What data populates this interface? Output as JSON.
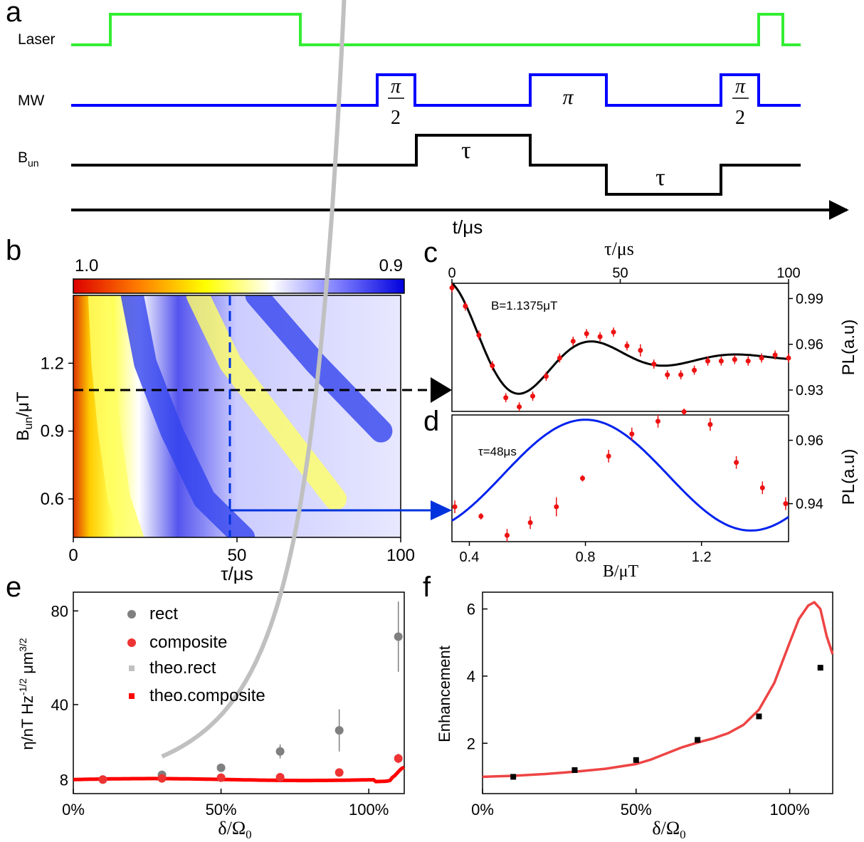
{
  "panels": {
    "a": {
      "label": "a",
      "rows": [
        {
          "name": "Laser",
          "sub": "",
          "color": "#33ee33"
        },
        {
          "name": "MW",
          "sub": "",
          "color": "#0000ff"
        },
        {
          "name": "B",
          "sub": "un",
          "color": "#000000"
        }
      ],
      "pulse_labels": {
        "pi_half_num": "π",
        "pi_half_den": "2",
        "pi": "π",
        "tau": "τ"
      },
      "time_axis_label": "t/μs"
    },
    "b": {
      "label": "b"
    },
    "c": {
      "label": "c"
    },
    "d": {
      "label": "d"
    },
    "e": {
      "label": "e"
    },
    "f": {
      "label": "f"
    }
  },
  "chart_data": [
    {
      "id": "b",
      "type": "heatmap",
      "xlabel": "τ/μs",
      "ylabel": "B",
      "ylabel_sub": "un",
      "ylabel_suffix": "/μT",
      "xlim": [
        0,
        100
      ],
      "ylim": [
        0.43,
        1.5
      ],
      "xticks": [
        0,
        50,
        100
      ],
      "yticks": [
        0.6,
        0.9,
        1.2
      ],
      "colorbar": {
        "min_label": "1.0",
        "max_label": "0.9",
        "colors": [
          "#dd0000",
          "#ff7f00",
          "#ffff00",
          "#ffffff",
          "#7f7fff",
          "#0000dd"
        ]
      },
      "markers": {
        "tau_cut": 48,
        "B_cut": 1.09
      },
      "contour_fronts": [
        {
          "level": "bright",
          "points": [
            [
              8,
              1.5
            ],
            [
              9,
              1.2
            ],
            [
              11,
              0.9
            ],
            [
              14,
              0.6
            ],
            [
              18,
              0.43
            ]
          ]
        },
        {
          "level": "dark",
          "points": [
            [
              18,
              1.5
            ],
            [
              22,
              1.2
            ],
            [
              30,
              0.9
            ],
            [
              40,
              0.6
            ],
            [
              52,
              0.43
            ]
          ]
        },
        {
          "level": "bright",
          "points": [
            [
              38,
              1.5
            ],
            [
              48,
              1.2
            ],
            [
              64,
              0.9
            ],
            [
              80,
              0.6
            ]
          ]
        },
        {
          "level": "dark",
          "points": [
            [
              56,
              1.5
            ],
            [
              74,
              1.2
            ],
            [
              94,
              0.9
            ]
          ]
        }
      ]
    },
    {
      "id": "c",
      "type": "scatter",
      "annotation": "B=1.1375μT",
      "xlabel": "τ/μs",
      "ylabel": "PL(a.u)",
      "xlim": [
        0,
        100
      ],
      "ylim": [
        0.916,
        1.0
      ],
      "xticks": [
        0,
        50,
        100
      ],
      "yticks": [
        0.93,
        0.96,
        0.99
      ],
      "x": [
        0,
        4,
        8,
        12,
        16,
        20,
        24,
        28,
        32,
        36,
        40,
        44,
        48,
        52,
        56,
        60,
        64,
        68,
        72,
        76,
        80,
        84,
        88,
        92,
        96,
        100
      ],
      "y": [
        0.997,
        0.985,
        0.966,
        0.946,
        0.925,
        0.919,
        0.926,
        0.939,
        0.951,
        0.962,
        0.967,
        0.965,
        0.968,
        0.959,
        0.956,
        0.947,
        0.94,
        0.94,
        0.943,
        0.949,
        0.949,
        0.95,
        0.949,
        0.951,
        0.953,
        0.951
      ],
      "yerr": [
        0.003,
        0.003,
        0.003,
        0.003,
        0.003,
        0.003,
        0.003,
        0.003,
        0.003,
        0.003,
        0.003,
        0.003,
        0.003,
        0.003,
        0.004,
        0.003,
        0.003,
        0.003,
        0.003,
        0.003,
        0.003,
        0.003,
        0.003,
        0.003,
        0.003,
        0.003
      ],
      "fit": {
        "offset": 0.951,
        "amp": 0.049,
        "period": 43,
        "decay": 28
      }
    },
    {
      "id": "d",
      "type": "scatter",
      "annotation": "τ=48μs",
      "xlabel": "B/μT",
      "ylabel": "PL(a.u)",
      "xlim": [
        0.34,
        1.5
      ],
      "ylim": [
        0.928,
        0.968
      ],
      "xticks": [
        0.4,
        0.8,
        1.2
      ],
      "yticks": [
        0.94,
        0.96
      ],
      "x": [
        0.35,
        0.44,
        0.53,
        0.61,
        0.7,
        0.79,
        0.88,
        0.96,
        1.05,
        1.14,
        1.23,
        1.32,
        1.41,
        1.49
      ],
      "y": [
        0.939,
        0.936,
        0.93,
        0.934,
        0.939,
        0.948,
        0.955,
        0.962,
        0.966,
        0.969,
        0.965,
        0.953,
        0.945,
        0.94
      ],
      "yerr": [
        0.002,
        0.001,
        0.002,
        0.002,
        0.003,
        0.001,
        0.002,
        0.002,
        0.002,
        0.001,
        0.002,
        0.002,
        0.002,
        0.002
      ],
      "fit": {
        "center": 0.82,
        "amp": 0.0175,
        "period": 1.14
      }
    },
    {
      "id": "e",
      "type": "scatter",
      "xlabel": "δ/Ω",
      "xlabel_sub": "0",
      "ylabel": "η/nT Hz",
      "ylim": [
        2,
        88
      ],
      "xlim": [
        0,
        1.12
      ],
      "xticks": [
        0,
        0.5,
        1.0
      ],
      "xticklabels": [
        "0%",
        "50%",
        "100%"
      ],
      "yticks": [
        8,
        40,
        80
      ],
      "legend_position": "upper-left",
      "series": [
        {
          "name": "rect",
          "x": [
            0.1,
            0.3,
            0.5,
            0.7,
            0.9,
            1.1
          ],
          "y": [
            8,
            10,
            13,
            20,
            29,
            69
          ],
          "yerr": [
            0.5,
            0.7,
            1,
            3,
            9,
            15
          ],
          "color": "#808080"
        },
        {
          "name": "composite",
          "x": [
            0.1,
            0.3,
            0.5,
            0.7,
            0.9,
            1.1
          ],
          "y": [
            8,
            8.5,
            8.8,
            9,
            11,
            17
          ],
          "yerr": [
            0.3,
            0.3,
            0.4,
            0.4,
            0.8,
            2
          ],
          "color": "#ee3333"
        },
        {
          "name": "theo.rect",
          "color": "#c0c0c0",
          "curve": {
            "base": 8,
            "scale": 4.8,
            "pole": 1.32
          }
        },
        {
          "name": "theo.composite",
          "color": "#ff0000",
          "curve": {
            "base": 8,
            "bump_pos": 1.12,
            "bump_amp": 5
          }
        }
      ]
    },
    {
      "id": "f",
      "type": "scatter",
      "xlabel": "δ/Ω",
      "xlabel_sub": "0",
      "ylabel": "Enhancement",
      "xlim": [
        0,
        1.14
      ],
      "ylim": [
        0.5,
        6.5
      ],
      "xticks": [
        0,
        0.5,
        1.0
      ],
      "xticklabels": [
        "0%",
        "50%",
        "100%"
      ],
      "yticks": [
        2,
        4,
        6
      ],
      "points": {
        "x": [
          0.1,
          0.3,
          0.5,
          0.7,
          0.9,
          1.1
        ],
        "y": [
          1.0,
          1.2,
          1.5,
          2.1,
          2.8,
          4.25
        ],
        "color": "#000000"
      },
      "theory": {
        "x": [
          0,
          0.1,
          0.2,
          0.3,
          0.4,
          0.5,
          0.55,
          0.6,
          0.65,
          0.7,
          0.75,
          0.8,
          0.85,
          0.9,
          0.95,
          1.0,
          1.03,
          1.06,
          1.08,
          1.1,
          1.12,
          1.14
        ],
        "y": [
          1.0,
          1.03,
          1.08,
          1.15,
          1.24,
          1.38,
          1.52,
          1.7,
          1.88,
          2.02,
          2.14,
          2.3,
          2.55,
          3.0,
          3.8,
          5.0,
          5.7,
          6.1,
          6.2,
          6.0,
          5.2,
          4.65
        ],
        "color": "#ee4444"
      }
    }
  ]
}
